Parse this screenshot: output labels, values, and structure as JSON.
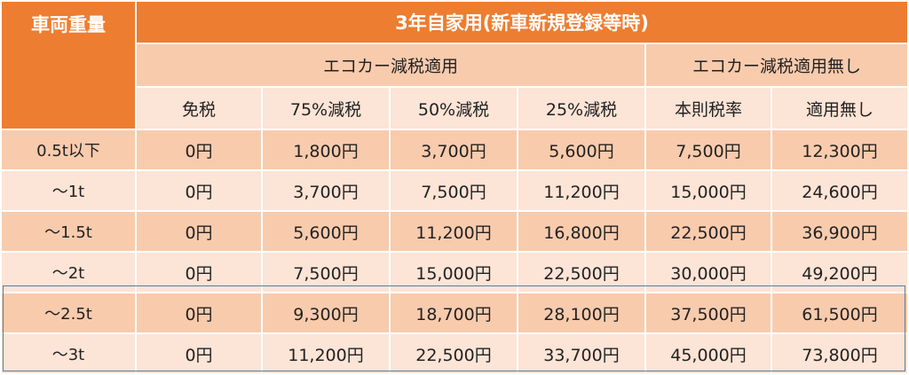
{
  "header": {
    "weight_label": "車両重量",
    "main_title": "3年自家用(新車新規登録等時)",
    "group_eco": "エコカー減税適用",
    "group_no_eco": "エコカー減税適用無し",
    "columns": [
      "免税",
      "75%減税",
      "50%減税",
      "25%減税",
      "本則税率",
      "適用無し"
    ]
  },
  "rows": [
    {
      "weight": "0.5t以下",
      "values": [
        "0円",
        "1,800円",
        "3,700円",
        "5,600円",
        "7,500円",
        "12,300円"
      ]
    },
    {
      "weight": "〜1t",
      "values": [
        "0円",
        "3,700円",
        "7,500円",
        "11,200円",
        "15,000円",
        "24,600円"
      ]
    },
    {
      "weight": "〜1.5t",
      "values": [
        "0円",
        "5,600円",
        "11,200円",
        "16,800円",
        "22,500円",
        "36,900円"
      ]
    },
    {
      "weight": "〜2t",
      "values": [
        "0円",
        "7,500円",
        "15,000円",
        "22,500円",
        "30,000円",
        "49,200円"
      ]
    },
    {
      "weight": "〜2.5t",
      "values": [
        "0円",
        "9,300円",
        "18,700円",
        "28,100円",
        "37,500円",
        "61,500円"
      ]
    },
    {
      "weight": "〜3t",
      "values": [
        "0円",
        "11,200円",
        "22,500円",
        "33,700円",
        "45,000円",
        "73,800円"
      ]
    }
  ],
  "colors": {
    "orange": "#ED7D31",
    "pink": "#F8CBAD",
    "light": "#FCE4D6",
    "highlight_border": "#5B7C99"
  }
}
